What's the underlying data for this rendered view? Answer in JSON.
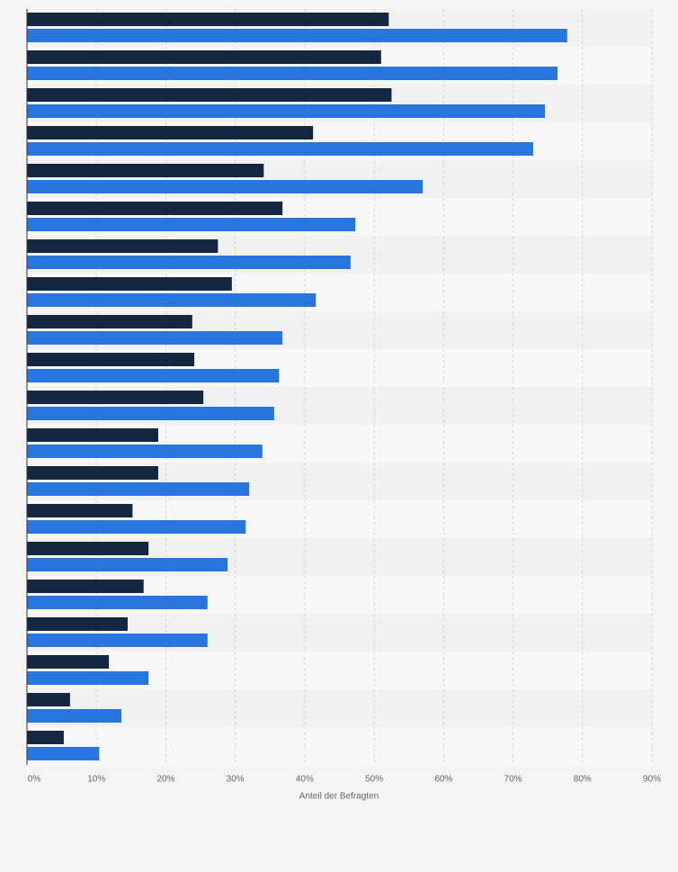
{
  "chart_data": {
    "type": "hbar",
    "xlabel": "Anteil der Befragten",
    "series": [
      {
        "color": "#14273e",
        "values": [
          52.1,
          51.0,
          52.5,
          41.2,
          34.1,
          36.8,
          27.5,
          29.5,
          23.8,
          24.1,
          25.4,
          18.9,
          18.9,
          15.2,
          17.5,
          16.8,
          14.5,
          11.8,
          6.2,
          5.3
        ]
      },
      {
        "color": "#2876dd",
        "values": [
          77.8,
          76.4,
          74.6,
          72.9,
          57.0,
          47.3,
          46.6,
          41.6,
          36.8,
          36.3,
          35.6,
          33.9,
          32.0,
          31.5,
          28.9,
          26.0,
          26.0,
          17.5,
          13.6,
          10.4
        ]
      }
    ],
    "xlim": [
      0,
      90
    ],
    "xticks": [
      {
        "value": 0,
        "label": "0%"
      },
      {
        "value": 10,
        "label": "10%"
      },
      {
        "value": 20,
        "label": "20%"
      },
      {
        "value": 30,
        "label": "30%"
      },
      {
        "value": 40,
        "label": "40%"
      },
      {
        "value": 50,
        "label": "50%"
      },
      {
        "value": 60,
        "label": "60%"
      },
      {
        "value": 70,
        "label": "70%"
      },
      {
        "value": 80,
        "label": "80%"
      },
      {
        "value": 90,
        "label": "90%"
      }
    ],
    "grid": true
  }
}
